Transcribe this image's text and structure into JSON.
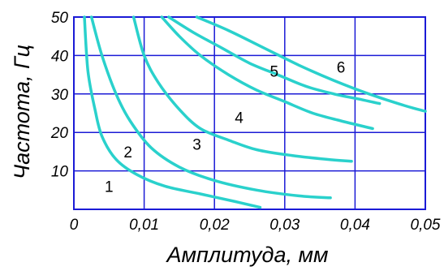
{
  "chart_data": {
    "type": "line",
    "title": "",
    "xlabel": "Амплитуда, мм",
    "ylabel": "Частота, Гц",
    "xlim": [
      0,
      0.05
    ],
    "ylim": [
      0,
      50
    ],
    "x_ticks": [
      {
        "value": 0,
        "label": "0"
      },
      {
        "value": 0.01,
        "label": "0,01"
      },
      {
        "value": 0.02,
        "label": "0,02"
      },
      {
        "value": 0.03,
        "label": "0,03"
      },
      {
        "value": 0.04,
        "label": "0,04"
      },
      {
        "value": 0.05,
        "label": "0,05"
      }
    ],
    "y_ticks": [
      {
        "value": 10,
        "label": "10"
      },
      {
        "value": 20,
        "label": "20"
      },
      {
        "value": 30,
        "label": "30"
      },
      {
        "value": 40,
        "label": "40"
      },
      {
        "value": 50,
        "label": "50"
      }
    ],
    "grid": true,
    "colors": {
      "curve": "#2ad1cc",
      "grid": "#1b1bd6",
      "frame": "#1b1bd6"
    },
    "series": [
      {
        "label": "1",
        "x": [
          0.0015,
          0.002,
          0.003,
          0.004,
          0.006,
          0.009,
          0.013,
          0.018,
          0.023,
          0.0265
        ],
        "y": [
          50,
          36,
          26,
          19,
          13,
          9,
          6,
          4,
          2,
          0.5
        ],
        "label_at": [
          0.005,
          4.5
        ]
      },
      {
        "label": "2",
        "x": [
          0.0025,
          0.004,
          0.006,
          0.008,
          0.011,
          0.015,
          0.02,
          0.026,
          0.032,
          0.0365
        ],
        "y": [
          50,
          40,
          30,
          23,
          16,
          11,
          7.5,
          5,
          3.5,
          3
        ],
        "label_at": [
          0.0077,
          13.5
        ]
      },
      {
        "label": "3",
        "x": [
          0.0085,
          0.01,
          0.012,
          0.015,
          0.018,
          0.022,
          0.026,
          0.031,
          0.036,
          0.0395
        ],
        "y": [
          50,
          40,
          33,
          26,
          21,
          18,
          15.5,
          14,
          13,
          12.5
        ],
        "label_at": [
          0.0175,
          15.5
        ]
      },
      {
        "label": "4",
        "x": [
          0.0125,
          0.015,
          0.018,
          0.022,
          0.026,
          0.03,
          0.034,
          0.038,
          0.0425
        ],
        "y": [
          50,
          45,
          40,
          35,
          31,
          28,
          25,
          23,
          21
        ],
        "label_at": [
          0.0235,
          22.5
        ]
      },
      {
        "label": "5",
        "x": [
          0.0135,
          0.017,
          0.021,
          0.025,
          0.029,
          0.033,
          0.037,
          0.041,
          0.0435
        ],
        "y": [
          50,
          46,
          42,
          38,
          35,
          32,
          30,
          28.5,
          27.5
        ],
        "label_at": [
          0.0285,
          34.5
        ]
      },
      {
        "label": "6",
        "x": [
          0.0175,
          0.022,
          0.027,
          0.032,
          0.037,
          0.042,
          0.047,
          0.05
        ],
        "y": [
          50,
          46.5,
          42,
          37.5,
          33.5,
          30,
          27,
          25.5
        ],
        "label_at": [
          0.038,
          35.5
        ]
      }
    ]
  }
}
